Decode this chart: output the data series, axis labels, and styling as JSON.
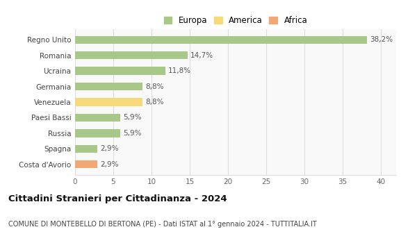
{
  "categories": [
    "Costa d'Avorio",
    "Spagna",
    "Russia",
    "Paesi Bassi",
    "Venezuela",
    "Germania",
    "Ucraina",
    "Romania",
    "Regno Unito"
  ],
  "values": [
    2.9,
    2.9,
    5.9,
    5.9,
    8.8,
    8.8,
    11.8,
    14.7,
    38.2
  ],
  "labels": [
    "2,9%",
    "2,9%",
    "5,9%",
    "5,9%",
    "8,8%",
    "8,8%",
    "11,8%",
    "14,7%",
    "38,2%"
  ],
  "colors": [
    "#f0a875",
    "#a8c88a",
    "#a8c88a",
    "#a8c88a",
    "#f7d97a",
    "#a8c88a",
    "#a8c88a",
    "#a8c88a",
    "#a8c88a"
  ],
  "legend_labels": [
    "Europa",
    "America",
    "Africa"
  ],
  "legend_colors": [
    "#a8c88a",
    "#f7d97a",
    "#f0a875"
  ],
  "title": "Cittadini Stranieri per Cittadinanza - 2024",
  "subtitle": "COMUNE DI MONTEBELLO DI BERTONA (PE) - Dati ISTAT al 1° gennaio 2024 - TUTTITALIA.IT",
  "xlim": [
    0,
    42
  ],
  "xticks": [
    0,
    5,
    10,
    15,
    20,
    25,
    30,
    35,
    40
  ],
  "bg_color": "#ffffff",
  "plot_bg_color": "#f9f9f9",
  "grid_color": "#dddddd",
  "bar_height": 0.5
}
